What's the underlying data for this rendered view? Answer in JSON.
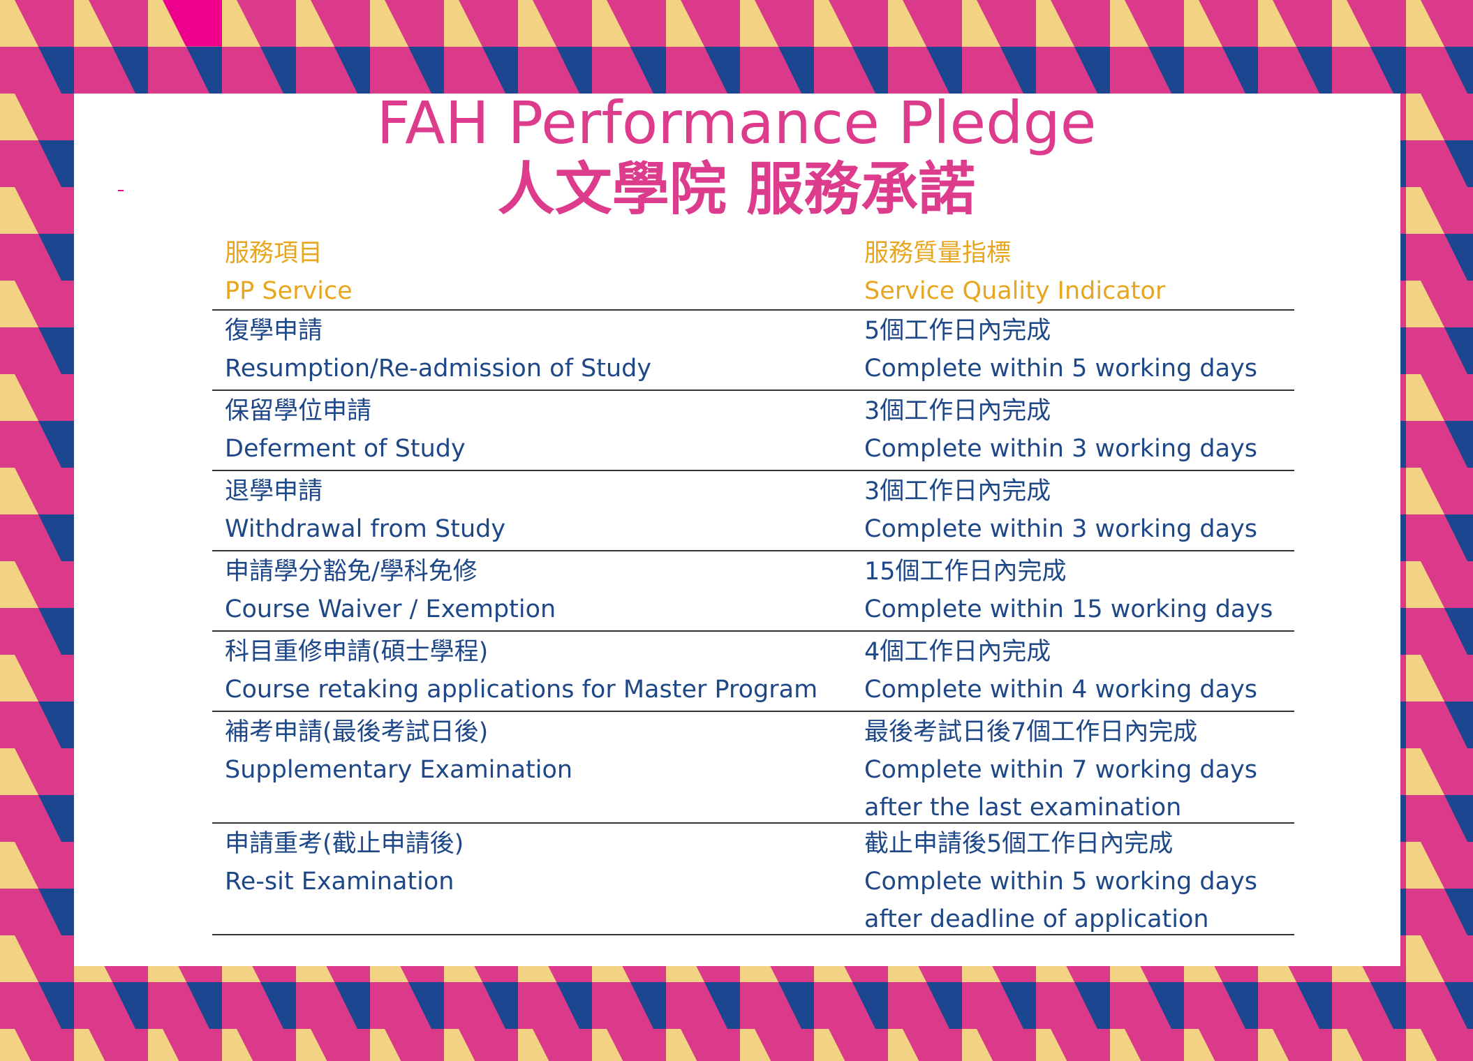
{
  "colors": {
    "pink": "#DB3A8B",
    "yellow": "#F2D383",
    "blue": "#1C4690",
    "title": "#DD3B8C",
    "header": "#E8A51E",
    "body": "#1E4787"
  },
  "title_en": "FAH Performance Pledge",
  "title_zh": "人文學院 服務承諾",
  "header": {
    "service_zh": "服務項目",
    "service_en": "PP Service",
    "indicator_zh": "服務質量指標",
    "indicator_en": "Service Quality Indicator"
  },
  "rows": [
    {
      "service": [
        "復學申請",
        "Resumption/Re-admission of Study"
      ],
      "indicator": [
        "5個工作日內完成",
        "Complete within 5 working days"
      ]
    },
    {
      "service": [
        "保留學位申請",
        "Deferment of Study"
      ],
      "indicator": [
        "3個工作日內完成",
        "Complete within 3 working days"
      ]
    },
    {
      "service": [
        "退學申請",
        "Withdrawal from Study"
      ],
      "indicator": [
        "3個工作日內完成",
        "Complete within 3 working days"
      ]
    },
    {
      "service": [
        "申請學分豁免/學科免修",
        "Course Waiver / Exemption"
      ],
      "indicator": [
        "15個工作日內完成",
        "Complete within 15 working days"
      ]
    },
    {
      "service": [
        "科目重修申請(碩士學程)",
        "Course retaking applications for Master Program"
      ],
      "indicator": [
        "4個工作日內完成",
        "Complete within 4 working days"
      ]
    },
    {
      "service": [
        "補考申請(最後考試日後)",
        "Supplementary Examination"
      ],
      "indicator": [
        "最後考試日後7個工作日內完成",
        "Complete within 7 working days",
        "after the last examination"
      ]
    },
    {
      "service": [
        "申請重考(截止申請後)",
        "Re-sit Examination"
      ],
      "indicator": [
        "截止申請後5個工作日內完成",
        "Complete within 5 working days",
        "after deadline of application"
      ]
    }
  ]
}
